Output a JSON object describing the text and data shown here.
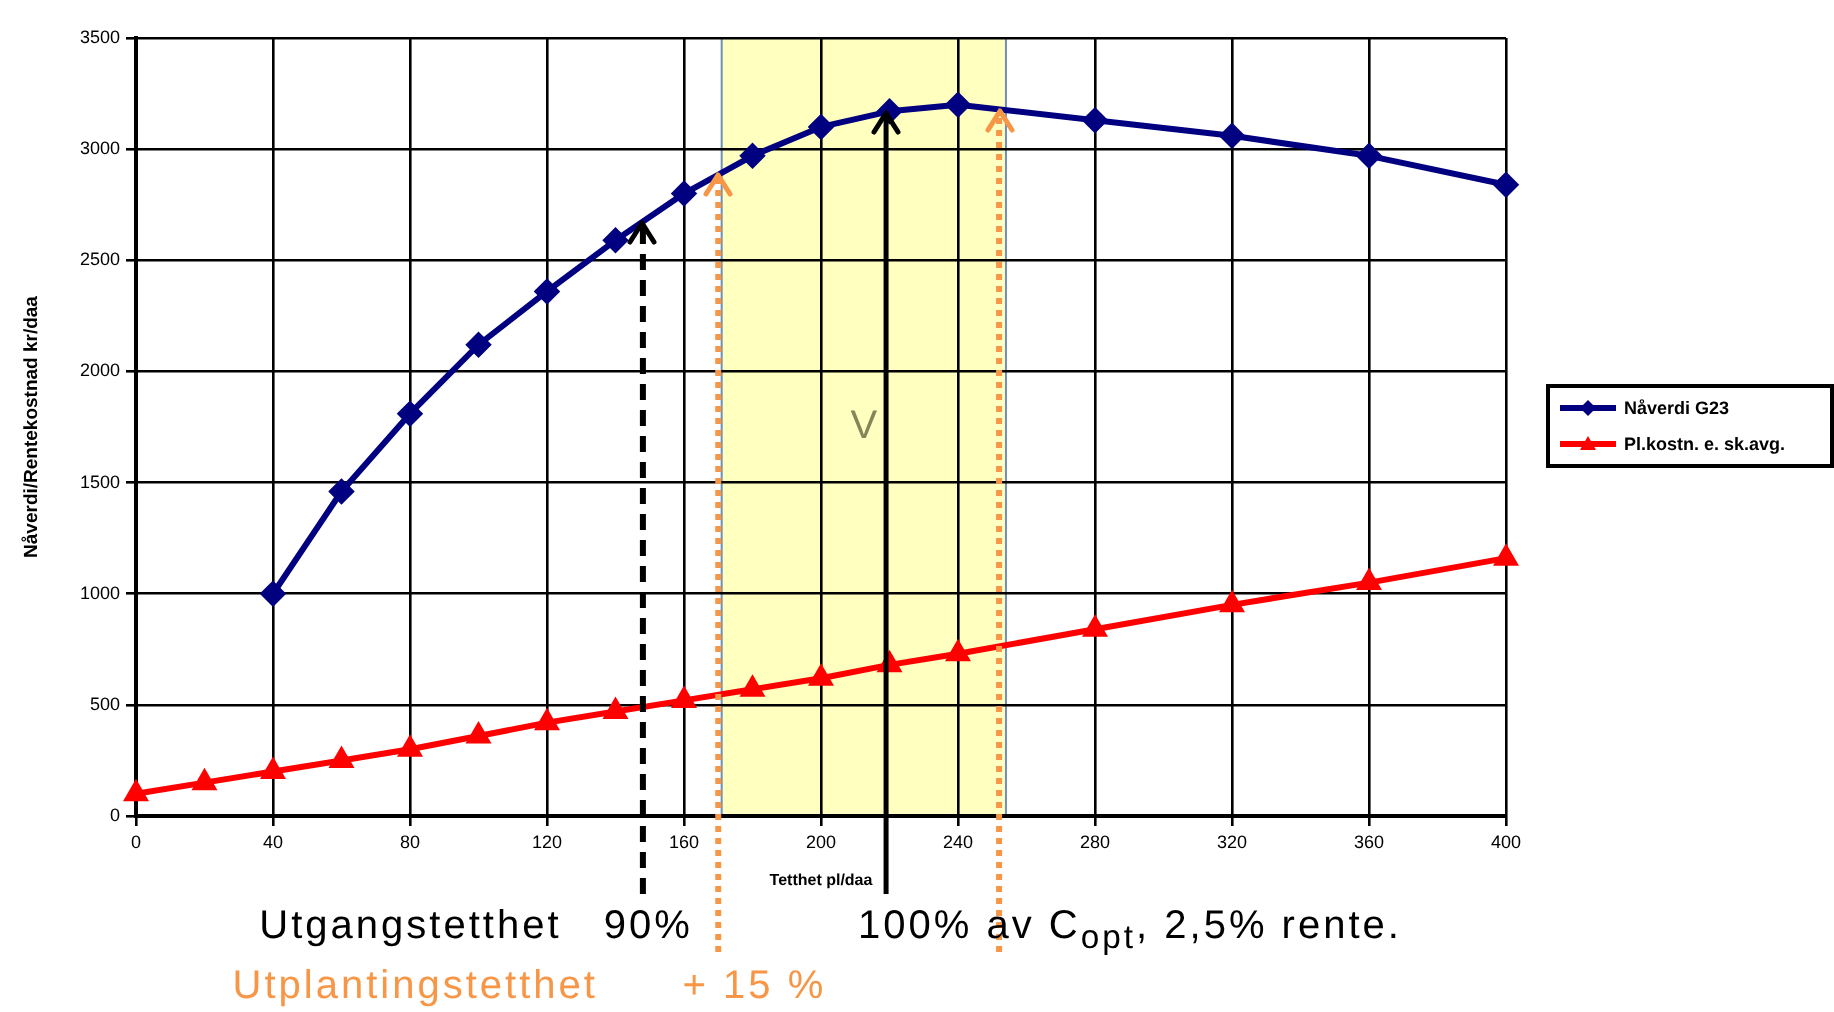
{
  "chart_data": {
    "type": "line",
    "xlabel": "Tetthet pl/daa",
    "ylabel": "Nåverdi/Rentekostnad kr/daa",
    "xlim": [
      0,
      400
    ],
    "xticks": [
      0,
      40,
      80,
      120,
      160,
      200,
      240,
      280,
      320,
      360,
      400
    ],
    "ylim": [
      0,
      3500
    ],
    "yticks": [
      0,
      500,
      1000,
      1500,
      2000,
      2500,
      3000,
      3500
    ],
    "grid": true,
    "legend": "right",
    "series": [
      {
        "name": "Nåverdi G23",
        "color": "#000080",
        "marker": "diamond",
        "x": [
          40,
          60,
          80,
          100,
          120,
          140,
          160,
          180,
          200,
          220,
          240,
          280,
          320,
          360,
          400
        ],
        "values": [
          1000,
          1460,
          1810,
          2120,
          2360,
          2590,
          2800,
          2970,
          3100,
          3170,
          3200,
          3130,
          3060,
          2970,
          2840
        ]
      },
      {
        "name": "Pl.kostn. e. sk.avg.",
        "color": "#ff0000",
        "marker": "triangle",
        "x": [
          0,
          20,
          40,
          60,
          80,
          100,
          120,
          140,
          160,
          180,
          200,
          220,
          240,
          280,
          320,
          360,
          400
        ],
        "values": [
          100,
          150,
          200,
          250,
          300,
          360,
          420,
          470,
          520,
          570,
          620,
          680,
          730,
          840,
          950,
          1050,
          1160
        ]
      }
    ],
    "bands": [
      {
        "axis": "x",
        "from": 171,
        "to": 254,
        "label": "V",
        "color": "#ffffc0"
      }
    ],
    "ref_lines": [
      {
        "axis": "x",
        "value": 148,
        "label": "Utgangstetthet   90%",
        "color": "#000000",
        "line_style": "dashed"
      },
      {
        "axis": "x",
        "value": 219,
        "label": "100% av C$_{opt}$, 2,5% rente.",
        "color": "#000000",
        "line_style": "solid"
      },
      {
        "axis": "x",
        "value": 170,
        "label": "Utplantingstetthet      + 15 %",
        "color": "#f79646",
        "line_style": "dotted"
      },
      {
        "axis": "x",
        "value": 252,
        "color": "#f79646",
        "line_style": "dotted"
      }
    ]
  }
}
